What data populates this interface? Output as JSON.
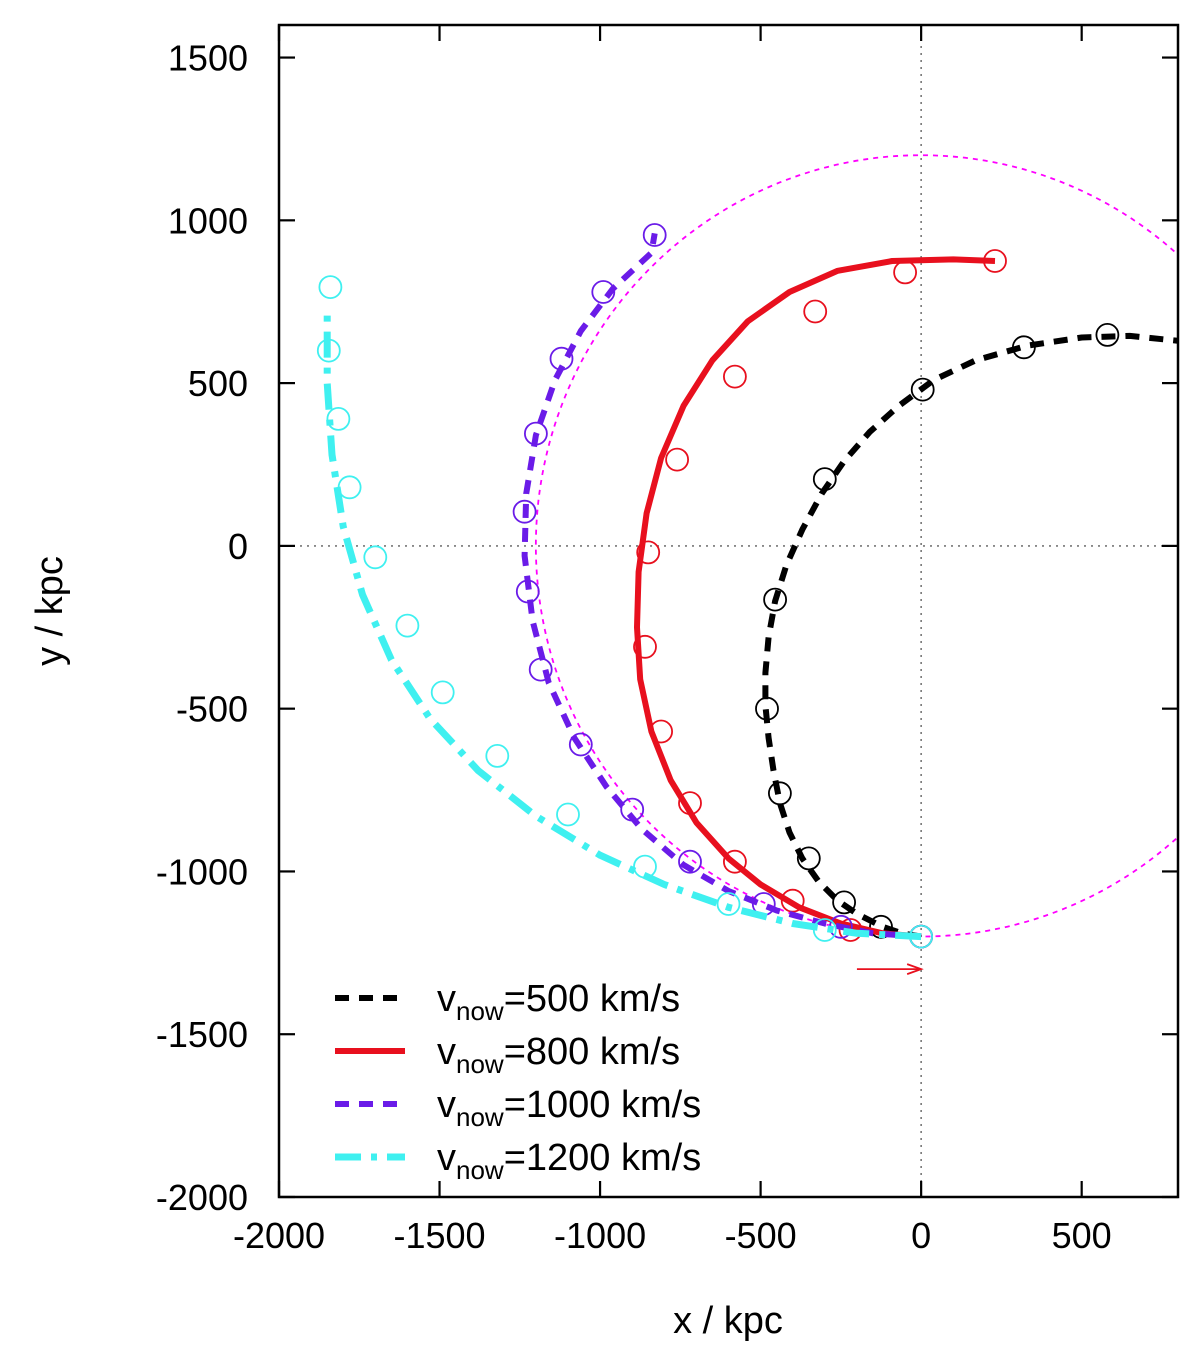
{
  "chart_data": {
    "type": "scatter",
    "xlabel": "x / kpc",
    "ylabel": "y / kpc",
    "xlim": [
      -2000,
      800
    ],
    "ylim": [
      -2000,
      1600
    ],
    "xticks": [
      -2000,
      -1500,
      -1000,
      -500,
      0,
      500
    ],
    "yticks": [
      -2000,
      -1500,
      -1000,
      -500,
      0,
      500,
      1000,
      1500
    ],
    "xtick_labels": [
      "-2000",
      "-1500",
      "-1000",
      "-500",
      "0",
      "500"
    ],
    "ytick_labels": [
      "-2000",
      "-1500",
      "-1000",
      "-500",
      "0",
      "500",
      "1000",
      "1500"
    ],
    "zero_lines": true,
    "reference_circle": {
      "center_x": 0,
      "center_y": 0,
      "radius": 1200,
      "color": "#ff00ff"
    },
    "arrow": {
      "from": [
        -200,
        -1300
      ],
      "to": [
        0,
        -1300
      ],
      "color": "#e8101e"
    },
    "legend_position": "bottom-left",
    "legend_prefix": "v",
    "legend_subscript": "now",
    "series": [
      {
        "name": "v_now=500 km/s",
        "legend_value": "=500 km/s",
        "color": "#000000",
        "style": "dashed",
        "line": [
          [
            0,
            -1200
          ],
          [
            -60,
            -1190
          ],
          [
            -120,
            -1170
          ],
          [
            -200,
            -1130
          ],
          [
            -260,
            -1090
          ],
          [
            -320,
            -1030
          ],
          [
            -370,
            -960
          ],
          [
            -410,
            -880
          ],
          [
            -440,
            -790
          ],
          [
            -460,
            -690
          ],
          [
            -475,
            -590
          ],
          [
            -485,
            -490
          ],
          [
            -485,
            -390
          ],
          [
            -475,
            -280
          ],
          [
            -455,
            -170
          ],
          [
            -420,
            -60
          ],
          [
            -370,
            50
          ],
          [
            -310,
            160
          ],
          [
            -240,
            260
          ],
          [
            -160,
            350
          ],
          [
            -70,
            430
          ],
          [
            40,
            510
          ],
          [
            170,
            570
          ],
          [
            330,
            615
          ],
          [
            500,
            640
          ],
          [
            650,
            645
          ],
          [
            800,
            630
          ]
        ],
        "markers": [
          [
            0,
            -1200
          ],
          [
            -125,
            -1170
          ],
          [
            -240,
            -1095
          ],
          [
            -350,
            -960
          ],
          [
            -440,
            -760
          ],
          [
            -480,
            -500
          ],
          [
            -455,
            -165
          ],
          [
            -300,
            205
          ],
          [
            5,
            480
          ],
          [
            320,
            610
          ],
          [
            580,
            648
          ]
        ]
      },
      {
        "name": "v_now=800 km/s",
        "legend_value": "=800 km/s",
        "color": "#e8101e",
        "style": "solid",
        "line": [
          [
            0,
            -1200
          ],
          [
            -120,
            -1190
          ],
          [
            -250,
            -1160
          ],
          [
            -380,
            -1110
          ],
          [
            -500,
            -1040
          ],
          [
            -600,
            -960
          ],
          [
            -700,
            -850
          ],
          [
            -780,
            -720
          ],
          [
            -840,
            -570
          ],
          [
            -875,
            -410
          ],
          [
            -885,
            -250
          ],
          [
            -880,
            -80
          ],
          [
            -855,
            100
          ],
          [
            -810,
            270
          ],
          [
            -740,
            430
          ],
          [
            -650,
            570
          ],
          [
            -540,
            690
          ],
          [
            -410,
            780
          ],
          [
            -260,
            845
          ],
          [
            -90,
            875
          ],
          [
            100,
            880
          ],
          [
            230,
            875
          ]
        ],
        "markers": [
          [
            0,
            -1200
          ],
          [
            -220,
            -1180
          ],
          [
            -400,
            -1090
          ],
          [
            -580,
            -970
          ],
          [
            -720,
            -790
          ],
          [
            -810,
            -570
          ],
          [
            -860,
            -310
          ],
          [
            -850,
            -20
          ],
          [
            -760,
            265
          ],
          [
            -580,
            520
          ],
          [
            -330,
            720
          ],
          [
            -50,
            840
          ],
          [
            230,
            875
          ]
        ]
      },
      {
        "name": "v_now=1000 km/s",
        "legend_value": "=1000 km/s",
        "color": "#6a1be8",
        "style": "dashed",
        "line": [
          [
            0,
            -1200
          ],
          [
            -150,
            -1190
          ],
          [
            -300,
            -1160
          ],
          [
            -450,
            -1120
          ],
          [
            -600,
            -1060
          ],
          [
            -740,
            -980
          ],
          [
            -870,
            -870
          ],
          [
            -980,
            -740
          ],
          [
            -1080,
            -590
          ],
          [
            -1160,
            -420
          ],
          [
            -1210,
            -230
          ],
          [
            -1235,
            -30
          ],
          [
            -1230,
            160
          ],
          [
            -1200,
            340
          ],
          [
            -1140,
            510
          ],
          [
            -1060,
            660
          ],
          [
            -960,
            790
          ],
          [
            -840,
            900
          ],
          [
            -830,
            960
          ]
        ],
        "markers": [
          [
            0,
            -1200
          ],
          [
            -250,
            -1170
          ],
          [
            -490,
            -1100
          ],
          [
            -720,
            -970
          ],
          [
            -900,
            -810
          ],
          [
            -1060,
            -610
          ],
          [
            -1185,
            -380
          ],
          [
            -1225,
            -140
          ],
          [
            -1235,
            105
          ],
          [
            -1200,
            345
          ],
          [
            -1120,
            575
          ],
          [
            -990,
            780
          ],
          [
            -830,
            955
          ]
        ]
      },
      {
        "name": "v_now=1200 km/s",
        "legend_value": "=1200 km/s",
        "color": "#3ff0f0",
        "style": "dashdot",
        "line": [
          [
            0,
            -1200
          ],
          [
            -200,
            -1190
          ],
          [
            -400,
            -1160
          ],
          [
            -600,
            -1110
          ],
          [
            -800,
            -1040
          ],
          [
            -1000,
            -950
          ],
          [
            -1200,
            -830
          ],
          [
            -1380,
            -690
          ],
          [
            -1530,
            -530
          ],
          [
            -1650,
            -350
          ],
          [
            -1740,
            -150
          ],
          [
            -1800,
            60
          ],
          [
            -1835,
            280
          ],
          [
            -1850,
            500
          ],
          [
            -1850,
            720
          ]
        ],
        "markers": [
          [
            0,
            -1200
          ],
          [
            -300,
            -1180
          ],
          [
            -600,
            -1100
          ],
          [
            -860,
            -985
          ],
          [
            -1100,
            -825
          ],
          [
            -1320,
            -645
          ],
          [
            -1490,
            -450
          ],
          [
            -1600,
            -245
          ],
          [
            -1700,
            -35
          ],
          [
            -1780,
            180
          ],
          [
            -1815,
            390
          ],
          [
            -1845,
            600
          ],
          [
            -1840,
            795
          ]
        ]
      }
    ]
  }
}
